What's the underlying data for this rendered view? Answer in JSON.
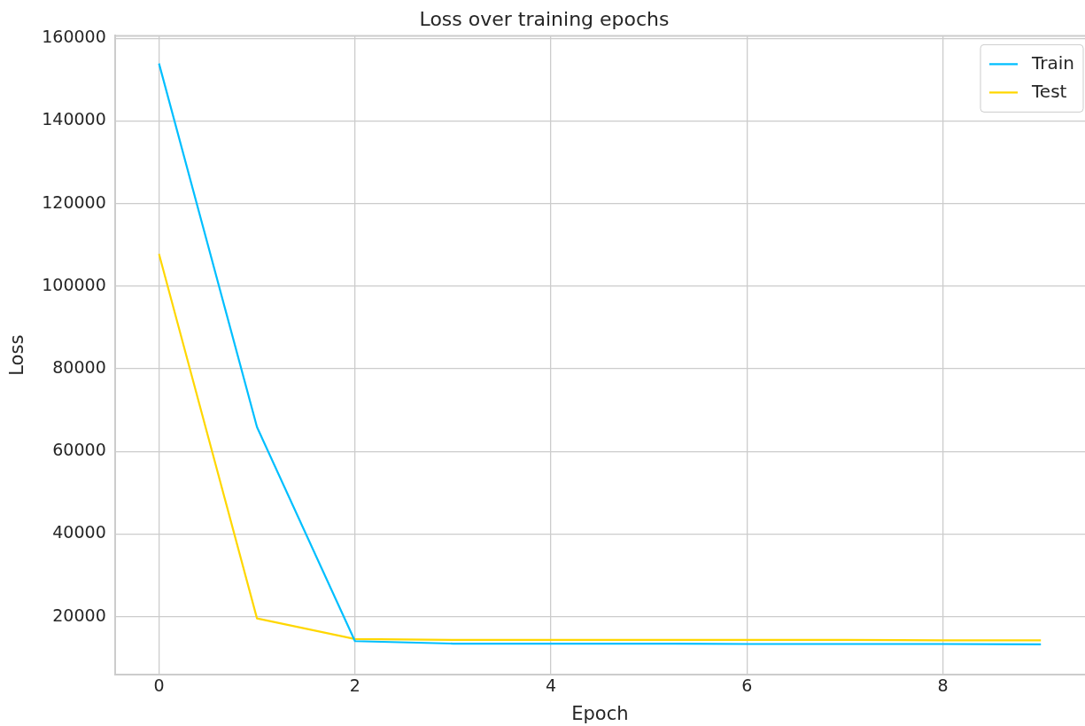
{
  "chart_data": {
    "type": "line",
    "title": "Loss over training epochs",
    "xlabel": "Epoch",
    "ylabel": "Loss",
    "x": [
      0,
      1,
      2,
      3,
      4,
      5,
      6,
      7,
      8,
      9
    ],
    "series": [
      {
        "name": "Train",
        "color": "#00bfff",
        "values": [
          153900,
          65900,
          14100,
          13500,
          13500,
          13500,
          13400,
          13400,
          13400,
          13300
        ]
      },
      {
        "name": "Test",
        "color": "#ffd700",
        "values": [
          107800,
          19600,
          14600,
          14400,
          14400,
          14400,
          14400,
          14400,
          14300,
          14300
        ]
      }
    ],
    "xlim": [
      -0.45,
      9.45
    ],
    "ylim": [
      6000,
      160600
    ],
    "xticks": [
      0,
      2,
      4,
      6,
      8
    ],
    "yticks": [
      20000,
      40000,
      60000,
      80000,
      100000,
      120000,
      140000,
      160000
    ],
    "grid": true,
    "legend": "top right",
    "marker": "none",
    "line_style": "solid"
  }
}
